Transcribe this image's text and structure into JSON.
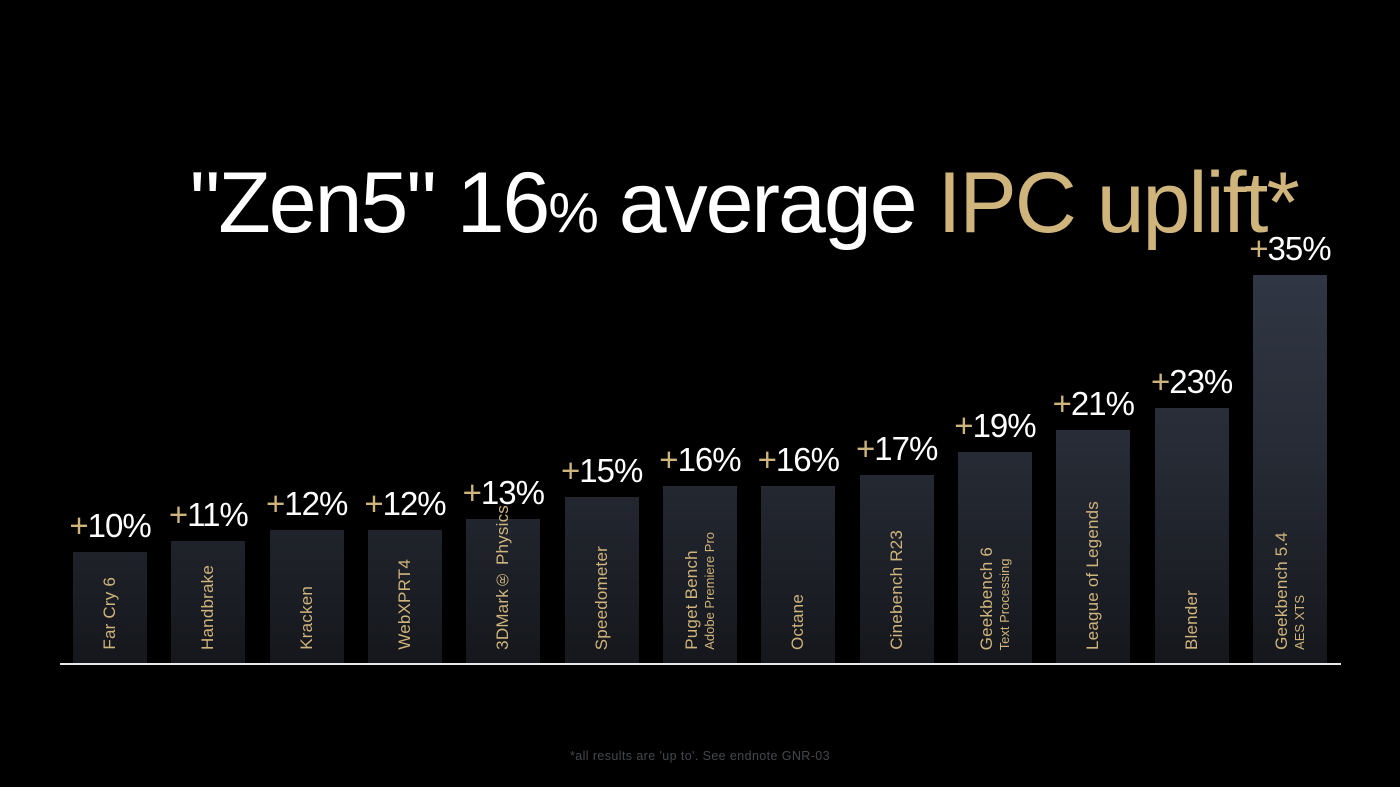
{
  "slide": {
    "title": {
      "part_white_a": "\"Zen5\" 16",
      "part_percent": "%",
      "part_white_b": " average ",
      "part_gold": "IPC uplift*"
    },
    "footnote": "*all results are 'up to'. See endnote GNR-03"
  },
  "colors": {
    "background": "#000000",
    "title_white": "#ffffff",
    "gold": "#cfb47c",
    "bar_gradient_top": "#303644",
    "bar_gradient_bottom": "#15171c",
    "baseline": "#e8e8e8",
    "value_white": "#ffffff",
    "footnote_gray": "#45484c"
  },
  "chart_data": {
    "type": "bar",
    "title": "\"Zen5\" 16% average IPC uplift*",
    "xlabel": "",
    "ylabel": "",
    "ylim": [
      0,
      35
    ],
    "grid": false,
    "legend": "none",
    "baseline_axis_only": true,
    "categories": [
      "Far Cry 6",
      "Handbrake",
      "Kracken",
      "WebXPRT4",
      "3DMark® Physics",
      "Speedometer",
      "Puget Bench",
      "Octane",
      "Cinebench R23",
      "Geekbench 6",
      "League of Legends",
      "Blender",
      "Geekbench 5.4"
    ],
    "values": [
      10,
      11,
      12,
      12,
      13,
      15,
      16,
      16,
      17,
      19,
      21,
      23,
      35
    ],
    "bars": [
      {
        "label": "Far Cry 6",
        "sublabel": "",
        "value": 10,
        "value_label": "+10%"
      },
      {
        "label": "Handbrake",
        "sublabel": "",
        "value": 11,
        "value_label": "+11%"
      },
      {
        "label": "Kracken",
        "sublabel": "",
        "value": 12,
        "value_label": "+12%"
      },
      {
        "label": "WebXPRT4",
        "sublabel": "",
        "value": 12,
        "value_label": "+12%"
      },
      {
        "label": "3DMark® Physics",
        "sublabel": "",
        "value": 13,
        "value_label": "+13%"
      },
      {
        "label": "Speedometer",
        "sublabel": "",
        "value": 15,
        "value_label": "+15%"
      },
      {
        "label": "Puget Bench",
        "sublabel": "Adobe Premiere Pro",
        "value": 16,
        "value_label": "+16%"
      },
      {
        "label": "Octane",
        "sublabel": "",
        "value": 16,
        "value_label": "+16%"
      },
      {
        "label": "Cinebench R23",
        "sublabel": "",
        "value": 17,
        "value_label": "+17%"
      },
      {
        "label": "Geekbench 6",
        "sublabel": "Text Processing",
        "value": 19,
        "value_label": "+19%"
      },
      {
        "label": "League of Legends",
        "sublabel": "",
        "value": 21,
        "value_label": "+21%"
      },
      {
        "label": "Blender",
        "sublabel": "",
        "value": 23,
        "value_label": "+23%"
      },
      {
        "label": "Geekbench 5.4",
        "sublabel": "AES XTS",
        "value": 35,
        "value_label": "+35%"
      }
    ]
  }
}
